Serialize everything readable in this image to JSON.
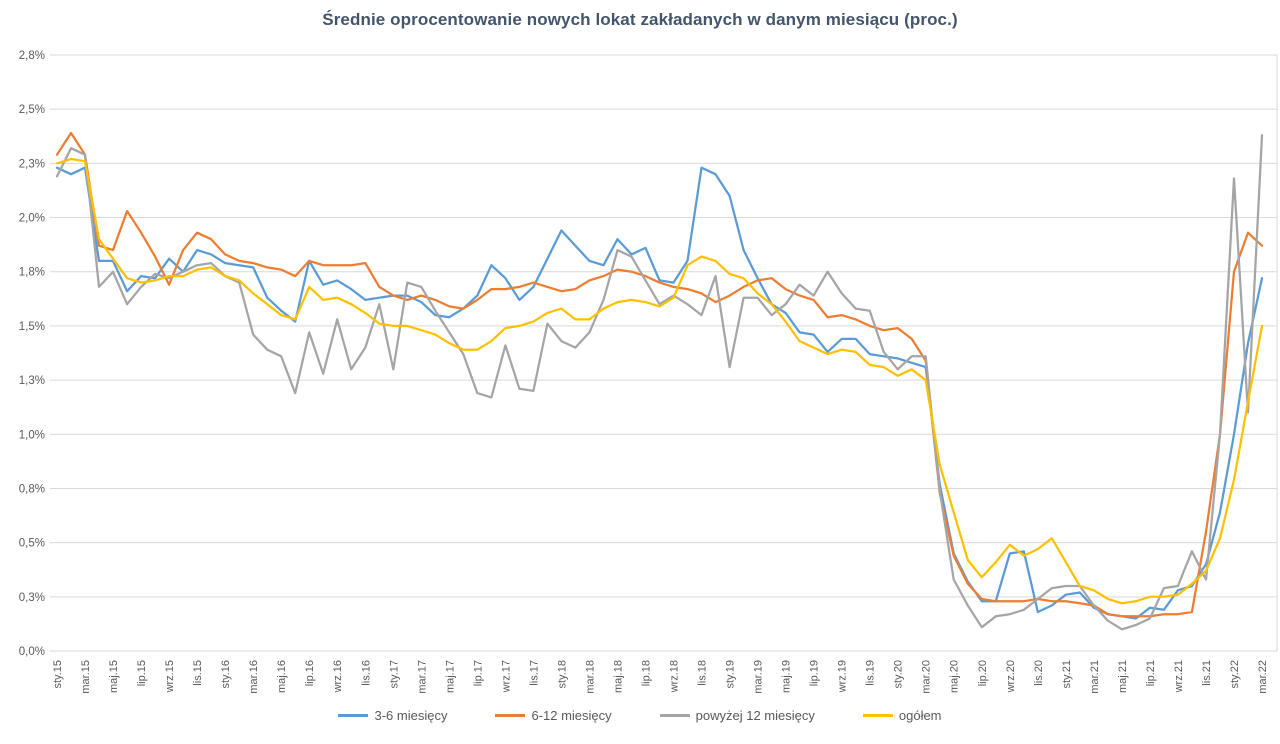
{
  "chart_data": {
    "type": "line",
    "title": "Średnie oprocentowanie nowych lokat zakładanych w danym miesiącu (proc.)",
    "xlabel": "",
    "ylabel": "",
    "grid": true,
    "legend_position": "bottom",
    "x_tick_step": 2,
    "months": [
      "sty.15",
      "lut.15",
      "mar.15",
      "kwi.15",
      "maj.15",
      "cze.15",
      "lip.15",
      "sie.15",
      "wrz.15",
      "paź.15",
      "lis.15",
      "gru.15",
      "sty.16",
      "lut.16",
      "mar.16",
      "kwi.16",
      "maj.16",
      "cze.16",
      "lip.16",
      "sie.16",
      "wrz.16",
      "paź.16",
      "lis.16",
      "gru.16",
      "sty.17",
      "lut.17",
      "mar.17",
      "kwi.17",
      "maj.17",
      "cze.17",
      "lip.17",
      "sie.17",
      "wrz.17",
      "paź.17",
      "lis.17",
      "gru.17",
      "sty.18",
      "lut.18",
      "mar.18",
      "kwi.18",
      "maj.18",
      "cze.18",
      "lip.18",
      "sie.18",
      "wrz.18",
      "paź.18",
      "lis.18",
      "gru.18",
      "sty.19",
      "lut.19",
      "mar.19",
      "kwi.19",
      "maj.19",
      "cze.19",
      "lip.19",
      "sie.19",
      "wrz.19",
      "paź.19",
      "lis.19",
      "gru.19",
      "sty.20",
      "lut.20",
      "mar.20",
      "kwi.20",
      "maj.20",
      "cze.20",
      "lip.20",
      "sie.20",
      "wrz.20",
      "paź.20",
      "lis.20",
      "gru.20",
      "sty.21",
      "lut.21",
      "mar.21",
      "kwi.21",
      "maj.21",
      "cze.21",
      "lip.21",
      "sie.21",
      "wrz.21",
      "paź.21",
      "lis.21",
      "gru.21",
      "sty.22",
      "lut.22",
      "mar.22"
    ],
    "x_tick_labels": [
      "sty.15",
      "mar.15",
      "maj.15",
      "lip.15",
      "wrz.15",
      "lis.15",
      "sty.16",
      "mar.16",
      "maj.16",
      "lip.16",
      "wrz.16",
      "lis.16",
      "sty.17",
      "mar.17",
      "maj.17",
      "lip.17",
      "wrz.17",
      "lis.17",
      "sty.18",
      "mar.18",
      "maj.18",
      "lip.18",
      "wrz.18",
      "lis.18",
      "sty.19",
      "mar.19",
      "maj.19",
      "lip.19",
      "wrz.19",
      "lis.19",
      "sty.20",
      "mar.20",
      "maj.20",
      "lip.20",
      "wrz.20",
      "lis.20",
      "sty.21",
      "mar.21",
      "maj.21",
      "lip.21",
      "wrz.21",
      "lis.21",
      "sty.22",
      "mar.22"
    ],
    "y_axis": {
      "min": 0,
      "max": 2.75,
      "tick_values": [
        0,
        0.25,
        0.5,
        0.75,
        1.0,
        1.25,
        1.5,
        1.75,
        2.0,
        2.25,
        2.5,
        2.75
      ],
      "tick_labels": [
        "0,0%",
        "0,3%",
        "0,5%",
        "0,8%",
        "1,0%",
        "1,3%",
        "1,5%",
        "1,8%",
        "2,0%",
        "2,3%",
        "2,5%",
        "2,8%"
      ]
    },
    "series": [
      {
        "name": "3-6 miesięcy",
        "color": "#5B9BD5",
        "values": [
          2.23,
          2.2,
          2.23,
          1.8,
          1.8,
          1.66,
          1.73,
          1.72,
          1.81,
          1.75,
          1.85,
          1.83,
          1.79,
          1.78,
          1.77,
          1.63,
          1.57,
          1.52,
          1.8,
          1.69,
          1.71,
          1.67,
          1.62,
          1.63,
          1.64,
          1.64,
          1.61,
          1.55,
          1.54,
          1.58,
          1.64,
          1.78,
          1.72,
          1.62,
          1.68,
          1.81,
          1.94,
          1.87,
          1.8,
          1.78,
          1.9,
          1.83,
          1.86,
          1.71,
          1.7,
          1.8,
          2.23,
          2.2,
          2.1,
          1.85,
          1.72,
          1.6,
          1.56,
          1.47,
          1.46,
          1.38,
          1.44,
          1.44,
          1.37,
          1.36,
          1.35,
          1.33,
          1.31,
          0.77,
          0.45,
          0.32,
          0.23,
          0.23,
          0.45,
          0.46,
          0.18,
          0.21,
          0.26,
          0.27,
          0.2,
          0.17,
          0.16,
          0.15,
          0.2,
          0.19,
          0.28,
          0.3,
          0.4,
          0.64,
          1.0,
          1.42,
          1.72
        ]
      },
      {
        "name": "6-12 miesięcy",
        "color": "#ED7D31",
        "values": [
          2.29,
          2.39,
          2.29,
          1.87,
          1.85,
          2.03,
          1.93,
          1.82,
          1.69,
          1.85,
          1.93,
          1.9,
          1.83,
          1.8,
          1.79,
          1.77,
          1.76,
          1.73,
          1.8,
          1.78,
          1.78,
          1.78,
          1.79,
          1.68,
          1.64,
          1.62,
          1.64,
          1.62,
          1.59,
          1.58,
          1.62,
          1.67,
          1.67,
          1.68,
          1.7,
          1.68,
          1.66,
          1.67,
          1.71,
          1.73,
          1.76,
          1.75,
          1.73,
          1.7,
          1.68,
          1.67,
          1.65,
          1.61,
          1.64,
          1.68,
          1.71,
          1.72,
          1.67,
          1.64,
          1.62,
          1.54,
          1.55,
          1.53,
          1.5,
          1.48,
          1.49,
          1.44,
          1.34,
          0.73,
          0.44,
          0.31,
          0.24,
          0.23,
          0.23,
          0.23,
          0.24,
          0.23,
          0.23,
          0.22,
          0.21,
          0.17,
          0.16,
          0.16,
          0.16,
          0.17,
          0.17,
          0.18,
          0.55,
          1.0,
          1.75,
          1.93,
          1.87
        ]
      },
      {
        "name": "powyżej 12 miesięcy",
        "color": "#A5A5A5",
        "values": [
          2.19,
          2.32,
          2.29,
          1.68,
          1.75,
          1.6,
          1.68,
          1.74,
          1.72,
          1.75,
          1.78,
          1.79,
          1.73,
          1.7,
          1.46,
          1.39,
          1.36,
          1.19,
          1.47,
          1.28,
          1.53,
          1.3,
          1.4,
          1.6,
          1.3,
          1.7,
          1.68,
          1.57,
          1.47,
          1.37,
          1.19,
          1.17,
          1.41,
          1.21,
          1.2,
          1.51,
          1.43,
          1.4,
          1.47,
          1.62,
          1.85,
          1.82,
          1.71,
          1.6,
          1.64,
          1.6,
          1.55,
          1.73,
          1.31,
          1.63,
          1.63,
          1.55,
          1.6,
          1.69,
          1.64,
          1.75,
          1.65,
          1.58,
          1.57,
          1.38,
          1.3,
          1.36,
          1.36,
          0.74,
          0.33,
          0.21,
          0.11,
          0.16,
          0.17,
          0.19,
          0.24,
          0.29,
          0.3,
          0.3,
          0.21,
          0.14,
          0.1,
          0.12,
          0.15,
          0.29,
          0.3,
          0.46,
          0.33,
          1.0,
          2.18,
          1.1,
          2.38
        ]
      },
      {
        "name": "ogółem",
        "color": "#FFC000",
        "values": [
          2.25,
          2.27,
          2.26,
          1.9,
          1.81,
          1.72,
          1.7,
          1.71,
          1.73,
          1.73,
          1.76,
          1.77,
          1.73,
          1.71,
          1.65,
          1.6,
          1.55,
          1.53,
          1.68,
          1.62,
          1.63,
          1.6,
          1.56,
          1.51,
          1.5,
          1.5,
          1.48,
          1.46,
          1.42,
          1.39,
          1.39,
          1.43,
          1.49,
          1.5,
          1.52,
          1.56,
          1.58,
          1.53,
          1.53,
          1.58,
          1.61,
          1.62,
          1.61,
          1.59,
          1.63,
          1.78,
          1.82,
          1.8,
          1.74,
          1.72,
          1.65,
          1.6,
          1.52,
          1.43,
          1.4,
          1.37,
          1.39,
          1.38,
          1.32,
          1.31,
          1.27,
          1.3,
          1.25,
          0.86,
          0.64,
          0.42,
          0.34,
          0.41,
          0.49,
          0.44,
          0.47,
          0.52,
          0.41,
          0.3,
          0.28,
          0.24,
          0.22,
          0.23,
          0.25,
          0.25,
          0.26,
          0.31,
          0.37,
          0.52,
          0.79,
          1.15,
          1.5
        ]
      }
    ],
    "colors": {
      "title": "#44546A",
      "axis_labels": "#595959",
      "gridlines": "#D9D9D9",
      "background": "#FFFFFF"
    }
  }
}
